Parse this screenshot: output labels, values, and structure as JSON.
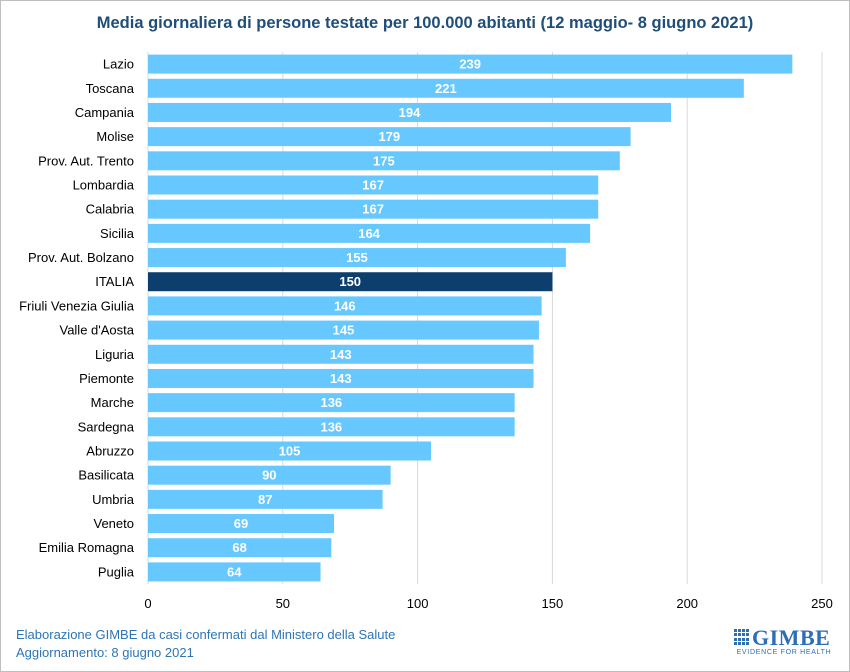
{
  "chart_data": {
    "type": "bar",
    "orientation": "horizontal",
    "title": "Media giornaliera di persone testate per 100.000 abitanti (12 maggio- 8 giugno 2021)",
    "categories": [
      "Lazio",
      "Toscana",
      "Campania",
      "Molise",
      "Prov. Aut. Trento",
      "Lombardia",
      "Calabria",
      "Sicilia",
      "Prov. Aut. Bolzano",
      "ITALIA",
      "Friuli Venezia Giulia",
      "Valle d'Aosta",
      "Liguria",
      "Piemonte",
      "Marche",
      "Sardegna",
      "Abruzzo",
      "Basilicata",
      "Umbria",
      "Veneto",
      "Emilia Romagna",
      "Puglia"
    ],
    "values": [
      239,
      221,
      194,
      179,
      175,
      167,
      167,
      164,
      155,
      150,
      146,
      145,
      143,
      143,
      136,
      136,
      105,
      90,
      87,
      69,
      68,
      64
    ],
    "highlight": "ITALIA",
    "xlim": [
      0,
      250
    ],
    "xticks": [
      0,
      50,
      100,
      150,
      200,
      250
    ],
    "grid": true,
    "legend": "none",
    "colors": {
      "bar": "#66c8ff",
      "highlight": "#0d3f6e",
      "label": "#ffffff",
      "grid": "#d9d9d9"
    }
  },
  "footer": {
    "line1": "Elaborazione GIMBE da casi confermati dal Ministero della Salute",
    "line2": "Aggiornamento: 8 giugno 2021"
  },
  "logo": {
    "name": "GIMBE",
    "tagline": "EVIDENCE FOR HEALTH"
  }
}
